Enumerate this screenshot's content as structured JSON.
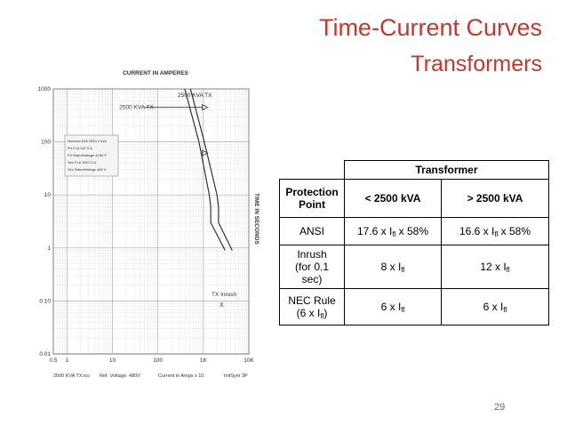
{
  "title": "Time-Current Curves",
  "subtitle": "Transformers",
  "page_number": "29",
  "chart": {
    "top_label": "CURRENT IN AMPERES",
    "y_label": "TIME IN SECONDS",
    "curve_label_top": "2500 KVA TX",
    "curve_label_left": "2500 KVA TX",
    "inrush_label": "TX Inrush",
    "inrush_marker": "X",
    "info_lines": [
      "Nominal kVA 2500.0 kVA",
      "Pri FLA 347.0 A",
      "Pri RatedVoltage 4160 V",
      "Sec FLA 3007.0 A",
      "Sec RatedVoltage 480 V"
    ],
    "footer": [
      "2500 KVA TX.tcc",
      "Ref. Voltage: 480V",
      "Current in Amps x 10",
      "InitSym 3P"
    ]
  },
  "chart_data": {
    "type": "line",
    "title": "CURRENT IN AMPERES",
    "xlabel": "",
    "ylabel": "TIME IN SECONDS",
    "x_scale": "log",
    "y_scale": "log",
    "xlim": [
      0.5,
      10000
    ],
    "ylim": [
      0.01,
      1000
    ],
    "x_ticks": [
      "0.5",
      "1",
      "10",
      "100",
      "1K",
      "10K"
    ],
    "y_ticks": [
      "1000",
      "100",
      "10",
      "1",
      "0.10",
      "0.01"
    ],
    "grid": true,
    "series": [
      {
        "name": "2500 KVA TX",
        "points": [
          [
            390,
            1000
          ],
          [
            800,
            100
          ],
          [
            1350,
            10
          ],
          [
            1450,
            6
          ],
          [
            1450,
            3
          ],
          [
            3000,
            0.9
          ]
        ]
      },
      {
        "name": "",
        "points": [
          [
            520,
            1000
          ],
          [
            1050,
            100
          ],
          [
            2000,
            10
          ],
          [
            2150,
            6
          ],
          [
            2150,
            3
          ],
          [
            4300,
            0.9
          ]
        ]
      }
    ],
    "markers": [
      {
        "x": 50,
        "y": 450,
        "label": "2500 KVA TX"
      },
      {
        "x": 1000,
        "y": 62,
        "label": ""
      }
    ],
    "annotations": [
      {
        "x": 1400,
        "y": 0.13,
        "label": "TX Inrush"
      }
    ]
  },
  "table": {
    "group_header": "Transformer",
    "row_header_label": "Protection Point",
    "col1": "< 2500 kVA",
    "col2": "> 2500 kVA",
    "rows": [
      {
        "label": "ANSI",
        "c1": {
          "pre": "17.6 x I",
          "sub": "fl",
          "post": " x 58%"
        },
        "c2": {
          "pre": "16.6 x I",
          "sub": "fl",
          "post": " x 58%"
        }
      },
      {
        "label": "Inrush\n(for 0.1 sec)",
        "c1": {
          "pre": "8 x I",
          "sub": "fl",
          "post": ""
        },
        "c2": {
          "pre": "12 x I",
          "sub": "fl",
          "post": ""
        }
      },
      {
        "label_pre": "NEC Rule\n(6 x I",
        "label_sub": "fl",
        "label_post": ")",
        "c1": {
          "pre": "6 x I",
          "sub": "fl",
          "post": ""
        },
        "c2": {
          "pre": "6 x I",
          "sub": "fl",
          "post": ""
        }
      }
    ]
  }
}
